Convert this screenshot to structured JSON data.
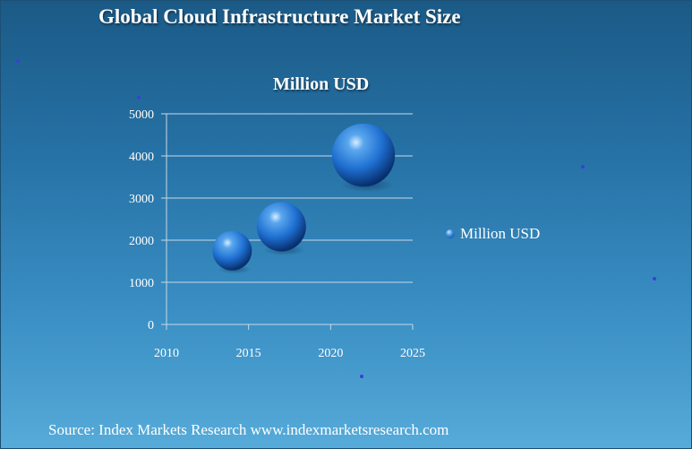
{
  "title": "Global Cloud Infrastructure  Market  Size",
  "source": "Source: Index Markets Research www.indexmarketsresearch.com",
  "chart_data": {
    "type": "scatter",
    "variant": "bubble-3d",
    "title": "Million USD",
    "xlabel": "",
    "ylabel": "",
    "xlim": [
      2010,
      2025
    ],
    "ylim": [
      0,
      5000
    ],
    "x_ticks": [
      "2010",
      "2015",
      "2020",
      "2025"
    ],
    "y_ticks": [
      "0",
      "1000",
      "2000",
      "3000",
      "4000",
      "5000"
    ],
    "grid": "horizontal",
    "legend_position": "right",
    "series": [
      {
        "name": "Million USD",
        "color": "#1e6fd1",
        "points": [
          {
            "x": 2014,
            "y": 1750,
            "size": 1.0
          },
          {
            "x": 2017,
            "y": 2320,
            "size": 1.25
          },
          {
            "x": 2022,
            "y": 4020,
            "size": 1.6
          }
        ]
      }
    ]
  },
  "colors": {
    "background_top": "#1b5a86",
    "background_bottom": "#56abd9",
    "bubble_highlight": "#cfe8ff",
    "bubble_shadow": "#0a3f8a",
    "grid": "#c8d8e6",
    "text": "#ffffff",
    "decor_dot": "#3b3fd6"
  }
}
